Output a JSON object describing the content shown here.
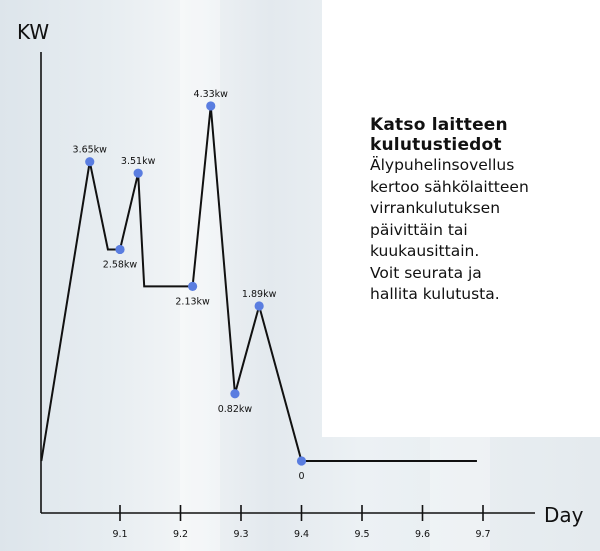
{
  "chart_data": {
    "type": "line",
    "ylabel": "KW",
    "xlabel": "Day",
    "x_ticks": [
      "9.1",
      "9.2",
      "9.3",
      "9.4",
      "9.5",
      "9.6",
      "9.7"
    ],
    "series": [
      {
        "points": [
          {
            "x": 8.97,
            "y": 0,
            "label": ""
          },
          {
            "x": 9.05,
            "y": 3.65,
            "label": "3.65kw"
          },
          {
            "x": 9.08,
            "y": 2.58,
            "label": ""
          },
          {
            "x": 9.1,
            "y": 2.58,
            "label": "2.58kw"
          },
          {
            "x": 9.13,
            "y": 3.51,
            "label": "3.51kw"
          },
          {
            "x": 9.14,
            "y": 2.13,
            "label": ""
          },
          {
            "x": 9.22,
            "y": 2.13,
            "label": "2.13kw"
          },
          {
            "x": 9.25,
            "y": 4.33,
            "label": "4.33kw"
          },
          {
            "x": 9.29,
            "y": 0.82,
            "label": "0.82kw"
          },
          {
            "x": 9.33,
            "y": 1.89,
            "label": "1.89kw"
          },
          {
            "x": 9.4,
            "y": 0,
            "label": "0"
          },
          {
            "x": 9.69,
            "y": 0,
            "label": ""
          }
        ]
      }
    ],
    "marked_points": [
      1,
      3,
      4,
      6,
      7,
      8,
      9,
      10
    ],
    "point_color": "#5a7de0",
    "line_color": "#111111"
  },
  "side_text": {
    "heading_lines": [
      "Katso laitteen",
      "kulutustiedot"
    ],
    "body_lines": [
      "Älypuhelinsovellus",
      "kertoo sähkölaitteen",
      "virrankulutuksen",
      "päivittäin tai",
      "kuukausittain.",
      "Voit seurata ja",
      "hallita kulutusta."
    ]
  }
}
